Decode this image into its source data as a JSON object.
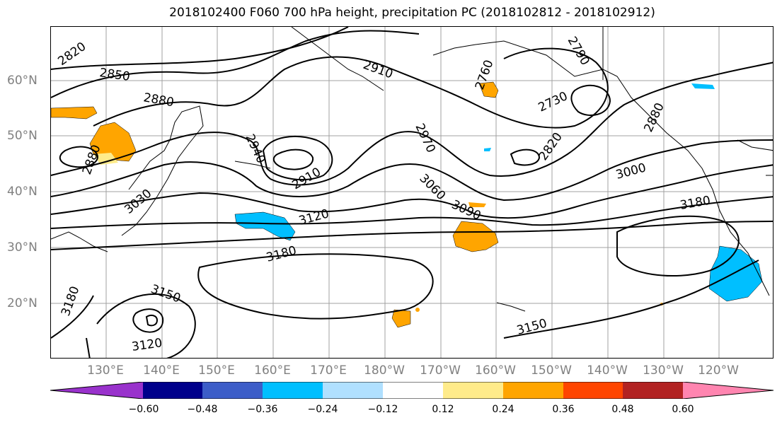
{
  "title": "2018102400 F060 700 hPa height, precipitation PC (2018102812 - 2018102912)",
  "lat_labels": [
    "60°N",
    "50°N",
    "40°N",
    "30°N",
    "20°N"
  ],
  "lon_labels": [
    "130°E",
    "140°E",
    "150°E",
    "160°E",
    "170°E",
    "180°W",
    "170°W",
    "160°W",
    "150°W",
    "140°W",
    "130°W",
    "120°W"
  ],
  "contour_labels": [
    "2820",
    "2850",
    "2880",
    "2910",
    "2760",
    "2790",
    "2730",
    "2820",
    "2970",
    "2940",
    "2910",
    "2880",
    "2880",
    "3000",
    "3030",
    "3060",
    "3090",
    "3120",
    "3180",
    "3180",
    "3180",
    "3150",
    "3120",
    "3150"
  ],
  "colorbar": {
    "ticks": [
      "−0.60",
      "−0.48",
      "−0.36",
      "−0.24",
      "−0.12",
      "0.12",
      "0.24",
      "0.36",
      "0.48",
      "0.60"
    ],
    "colors": [
      "#9932cc",
      "#00008b",
      "#3c5dc8",
      "#00bfff",
      "#b0e0ff",
      "#ffffff",
      "#ffeb8a",
      "#ffa500",
      "#ff4500",
      "#b22222",
      "#ff85b0"
    ]
  }
}
